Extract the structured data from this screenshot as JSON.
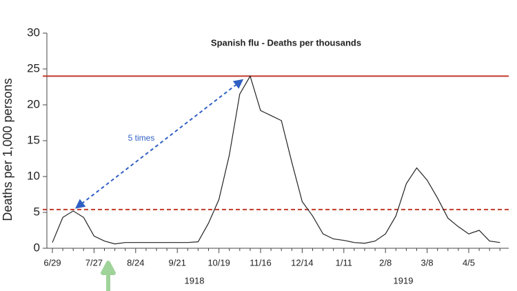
{
  "chart_data": {
    "type": "line",
    "title": "Spanish flu - Deaths per thousands",
    "y_label": "Deaths per 1,000 persons",
    "annotation": "5 times",
    "year_labels": [
      "1918",
      "1919"
    ],
    "categories": [
      "6/29",
      null,
      null,
      null,
      "7/27",
      null,
      null,
      null,
      "8/24",
      null,
      null,
      null,
      "9/21",
      null,
      null,
      null,
      "10/19",
      null,
      null,
      null,
      "11/16",
      null,
      null,
      null,
      "12/14",
      null,
      null,
      null,
      "1/11",
      null,
      null,
      null,
      "2/8",
      null,
      null,
      null,
      "3/8",
      null,
      null,
      null,
      "4/5",
      null,
      null,
      null
    ],
    "series": [
      {
        "name": "Deaths",
        "color": "#222222",
        "values": [
          0.8,
          4.3,
          5.2,
          4.3,
          1.7,
          1.0,
          0.6,
          0.8,
          0.8,
          0.8,
          0.8,
          0.8,
          0.8,
          0.8,
          0.9,
          3.5,
          6.8,
          13,
          21.5,
          24,
          19.2,
          18.5,
          17.8,
          12,
          6.5,
          4.5,
          2.0,
          1.3,
          1.1,
          0.8,
          0.7,
          1.0,
          2.0,
          4.5,
          9,
          11.2,
          9.5,
          7,
          4.2,
          3,
          2.0,
          2.5,
          1.0,
          0.8
        ]
      }
    ],
    "reference_lines": [
      {
        "value": 24,
        "style": "solid",
        "color": "#c0392b"
      },
      {
        "value": 5.4,
        "style": "dashed",
        "color": "#c0392b"
      }
    ],
    "arrow_color": "#2f5fc4",
    "ylim": [
      0,
      30
    ],
    "yticks": [
      0,
      5,
      10,
      15,
      20,
      25,
      30
    ],
    "grid": false
  }
}
